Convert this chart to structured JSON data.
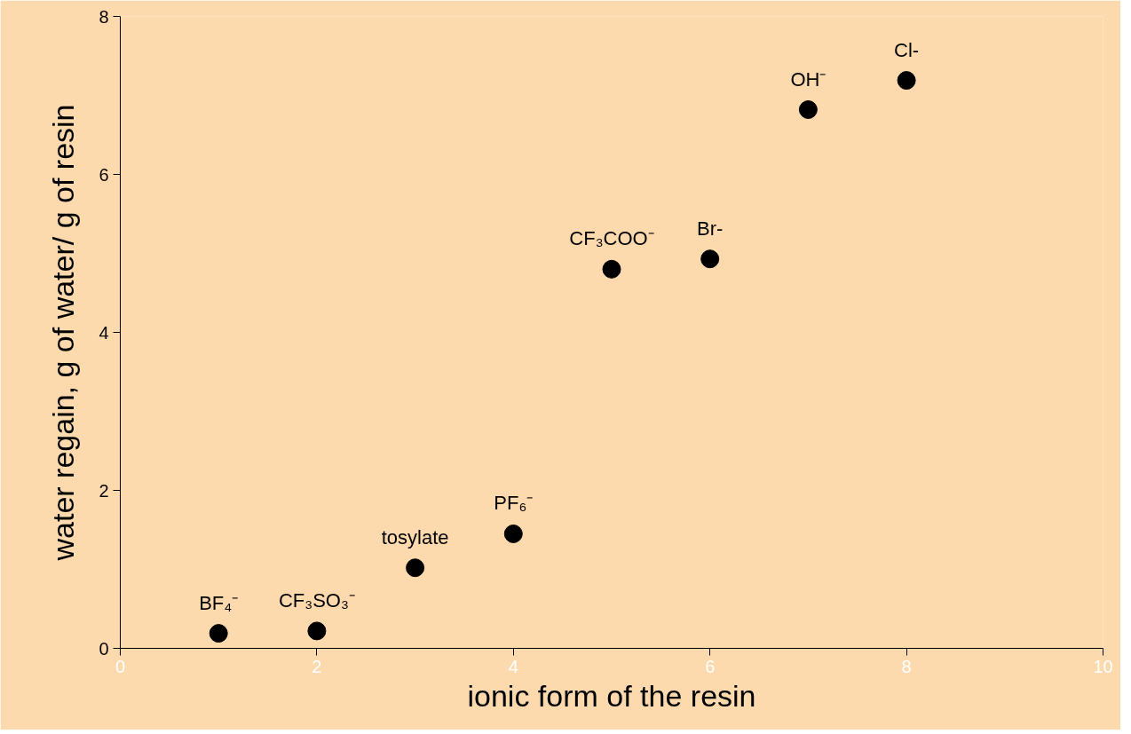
{
  "chart_data": {
    "type": "scatter",
    "xlabel": "ionic form of the resin",
    "ylabel": "water regain, g of water/ g of resin",
    "x": [
      1,
      2,
      3,
      4,
      5,
      6,
      7,
      8
    ],
    "series": [
      {
        "color": "#000000",
        "values": [
          0.19,
          0.22,
          1.02,
          1.45,
          4.8,
          4.93,
          6.82,
          7.19
        ]
      }
    ],
    "annotations": [
      {
        "text": "BF₄⁻",
        "x": 1,
        "y": 0.19
      },
      {
        "text": "CF₃SO₃⁻",
        "x": 2,
        "y": 0.22
      },
      {
        "text": "tosylate",
        "x": 3,
        "y": 1.02
      },
      {
        "text": "PF₆⁻",
        "x": 4,
        "y": 1.45
      },
      {
        "text": "CF₃COO⁻",
        "x": 5,
        "y": 4.8
      },
      {
        "text": "Br-",
        "x": 6,
        "y": 4.93
      },
      {
        "text": "OH⁻",
        "x": 7,
        "y": 6.82
      },
      {
        "text": "Cl-",
        "x": 8,
        "y": 7.19
      }
    ],
    "xlim": [
      0,
      10
    ],
    "ylim": [
      0,
      8
    ],
    "xticks": [
      0,
      2,
      4,
      6,
      8,
      10
    ],
    "yticks": [
      0,
      2,
      4,
      6,
      8
    ],
    "grid": false,
    "marker": "circle"
  }
}
